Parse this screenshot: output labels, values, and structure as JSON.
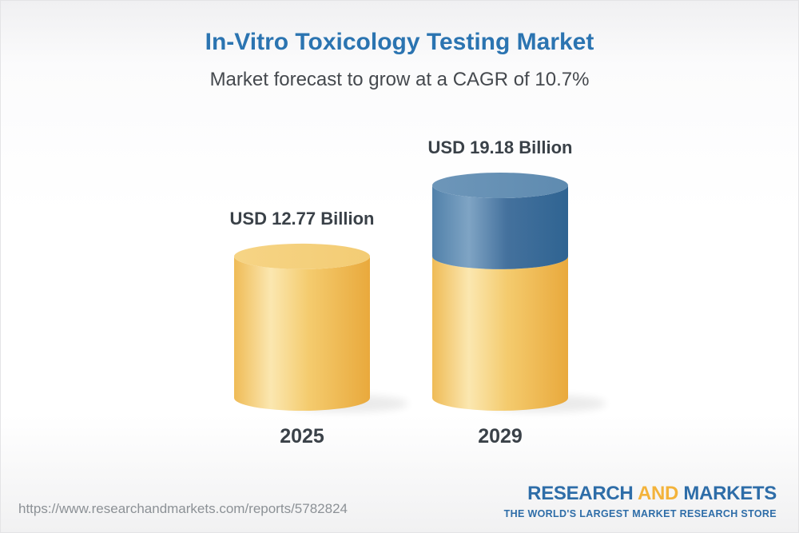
{
  "header": {
    "title": "In-Vitro Toxicology Testing Market",
    "subtitle": "Market forecast to grow at a CAGR of 10.7%"
  },
  "chart_data": {
    "type": "bar",
    "style": "3d-cylinder",
    "title": "In-Vitro Toxicology Testing Market",
    "subtitle": "Market forecast to grow at a CAGR of 10.7%",
    "cagr_pct": 10.7,
    "unit": "USD Billion",
    "categories": [
      "2025",
      "2029"
    ],
    "values": [
      12.77,
      19.18
    ],
    "value_labels": [
      "USD 12.77 Billion",
      "USD 19.18 Billion"
    ],
    "bars": [
      {
        "category": "2025",
        "total": 12.77,
        "label": "USD 12.77 Billion",
        "segments": [
          {
            "value": 12.77,
            "color_key": "yellow"
          }
        ]
      },
      {
        "category": "2029",
        "total": 19.18,
        "label": "USD 19.18 Billion",
        "segments": [
          {
            "value": 12.77,
            "color_key": "yellow"
          },
          {
            "value": 6.41,
            "color_key": "blue"
          }
        ]
      }
    ],
    "ylim": [
      0,
      19.18
    ],
    "grid": false,
    "legend": "none",
    "colors": {
      "yellow_body": [
        "#EFBB56",
        "#FBE7B0",
        "#F4CB6E",
        "#E9A93C"
      ],
      "yellow_top": [
        "#F6D485",
        "#F3CC74"
      ],
      "blue_body": [
        "#5181AA",
        "#7FA4C4",
        "#44719D",
        "#2F6492"
      ],
      "blue_top": [
        "#6D96B9",
        "#5F8BB0"
      ]
    }
  },
  "footer": {
    "url": "https://www.researchandmarkets.com/reports/5782824",
    "logo": {
      "part1": "RESEARCH",
      "part2": "AND",
      "part3": "MARKETS",
      "tagline": "THE WORLD'S LARGEST MARKET RESEARCH STORE"
    }
  },
  "colors": {
    "title_blue": "#2B74B1",
    "subtitle_gray": "#45494E",
    "text_dark": "#3A4148",
    "url_gray": "#8C9196",
    "logo_blue": "#2E6DA8",
    "logo_gold": "#F3B33B"
  }
}
